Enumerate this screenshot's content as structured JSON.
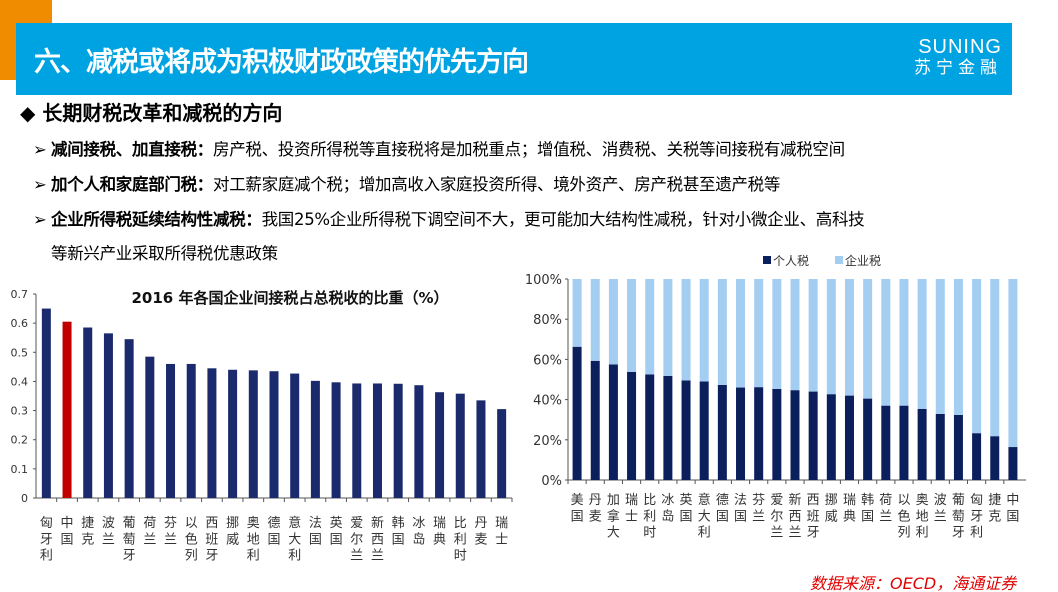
{
  "header": {
    "title": "六、减税或将成为积极财政政策的优先方向",
    "logo_en": "SUNING",
    "logo_cn": "苏宁金融"
  },
  "content": {
    "heading_icon": "diamond-bullet-icon",
    "heading": "长期财税改革和减税的方向",
    "bullet_icon": "arrow-bullet-icon",
    "bullets": [
      {
        "bold": "减间接税、加直接税：",
        "text": "房产税、投资所得税等直接税将是加税重点；增值税、消费税、关税等间接税有减税空间"
      },
      {
        "bold": "加个人和家庭部门税：",
        "text": "对工薪家庭减个税；增加高收入家庭投资所得、境外资产、房产税甚至遗产税等"
      },
      {
        "bold": "企业所得税延续结构性减税：",
        "text": "我国25%企业所得税下调空间不大，更可能加大结构性减税，针对小微企业、高科技"
      }
    ],
    "bullet3_cont": "等新兴产业采取所得税优惠政策"
  },
  "source": "数据来源：OECD，海通证券",
  "chart_data": [
    {
      "type": "bar",
      "title": "2016 年各国企业间接税占总税收的比重（%）",
      "categories": [
        "匈牙利",
        "中国",
        "捷克",
        "波兰",
        "葡萄牙",
        "荷兰",
        "芬兰",
        "以色列",
        "西班牙",
        "挪威",
        "奥地利",
        "德国",
        "意大利",
        "法国",
        "英国",
        "爱尔兰",
        "新西兰",
        "韩国",
        "冰岛",
        "瑞典",
        "比利时",
        "丹麦",
        "瑞士"
      ],
      "values": [
        0.65,
        0.605,
        0.585,
        0.565,
        0.545,
        0.485,
        0.46,
        0.46,
        0.445,
        0.44,
        0.438,
        0.435,
        0.427,
        0.402,
        0.397,
        0.393,
        0.393,
        0.392,
        0.387,
        0.363,
        0.358,
        0.335,
        0.305
      ],
      "highlight": "中国",
      "colors": {
        "default": "#1a2a6c",
        "highlight": "#c00000"
      },
      "ylim": [
        0,
        0.7
      ],
      "yticks": [
        "0",
        "0.1",
        "0.2",
        "0.3",
        "0.4",
        "0.5",
        "0.6",
        "0.7"
      ],
      "grid": false
    },
    {
      "type": "bar",
      "stacked": true,
      "categories": [
        "美国",
        "丹麦",
        "加拿大",
        "瑞士",
        "比利时",
        "冰岛",
        "英国",
        "意大利",
        "德国",
        "法国",
        "芬兰",
        "爱尔兰",
        "新西兰",
        "西班牙",
        "挪威",
        "瑞典",
        "韩国",
        "荷兰",
        "以色列",
        "奥地利",
        "波兰",
        "葡萄牙",
        "匈牙利",
        "捷克",
        "中国"
      ],
      "series": [
        {
          "name": "个人税",
          "color": "#0b1f5c",
          "values": [
            66.3,
            59.3,
            57.5,
            53.8,
            52.5,
            51.8,
            49.5,
            49,
            47.3,
            46,
            46.2,
            45.3,
            44.7,
            44,
            42.7,
            42,
            40.5,
            37,
            37,
            35.4,
            32.9,
            32.4,
            23.3,
            21.8,
            16.4
          ]
        },
        {
          "name": "企业税",
          "color": "#a4cdf2",
          "values": [
            33.7,
            40.7,
            42.5,
            46.2,
            47.5,
            48.2,
            50.5,
            51,
            52.7,
            54,
            53.8,
            54.7,
            55.3,
            56,
            57.3,
            58,
            59.5,
            63,
            63,
            64.6,
            67.1,
            67.6,
            76.7,
            78.2,
            83.6
          ]
        }
      ],
      "ylim": [
        0,
        100
      ],
      "yticks": [
        "0%",
        "20%",
        "40%",
        "60%",
        "80%",
        "100%"
      ],
      "legend": "top",
      "grid": false
    }
  ]
}
